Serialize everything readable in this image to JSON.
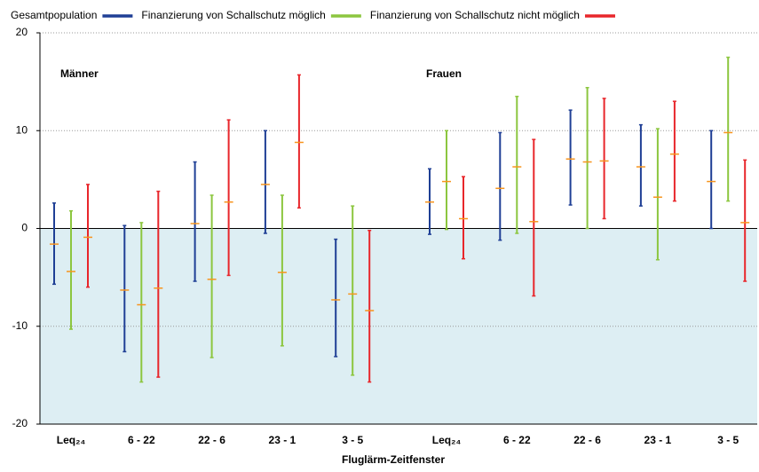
{
  "chart_data": {
    "type": "errorbar",
    "x_label": "Fluglärm-Zeitfenster",
    "annotations": [
      "Männer",
      "Frauen"
    ],
    "categories": [
      "Leq₂₄",
      "6 - 22",
      "22 - 6",
      "23 - 1",
      "3 - 5",
      "Leq₂₄",
      "6 - 22",
      "22 - 6",
      "23 - 1",
      "3 - 5"
    ],
    "estimate_color": "#f7941d",
    "shade_below_zero": "#ddeef3",
    "ylim": [
      -20,
      20
    ],
    "yticks": [
      -20,
      -10,
      0,
      10,
      20
    ],
    "grid": true,
    "series": [
      {
        "name": "Gesamtpopulation",
        "color": "#1f3f95",
        "values": [
          -1.6,
          -6.3,
          0.5,
          4.5,
          -7.3,
          2.7,
          4.1,
          7.1,
          6.3,
          4.8
        ],
        "low": [
          -5.7,
          -12.6,
          -5.4,
          -0.5,
          -13.1,
          -0.6,
          -1.2,
          2.4,
          2.3,
          0
        ],
        "high": [
          2.6,
          0.3,
          6.8,
          10,
          -1.1,
          6.1,
          9.8,
          12.1,
          10.6,
          10
        ]
      },
      {
        "name": "Finanzierung von Schallschutz möglich",
        "color": "#8cc63f",
        "values": [
          -4.4,
          -7.8,
          -5.2,
          -4.5,
          -6.7,
          4.8,
          6.3,
          6.8,
          3.2,
          9.8
        ],
        "low": [
          -10.3,
          -15.7,
          -13.2,
          -12,
          -15,
          -0.1,
          -0.5,
          0,
          -3.2,
          2.8
        ],
        "high": [
          1.8,
          0.6,
          3.4,
          3.4,
          2.3,
          10,
          13.5,
          14.4,
          10.2,
          17.5
        ]
      },
      {
        "name": "Finanzierung von Schallschutz nicht möglich",
        "color": "#e8262b",
        "values": [
          -0.9,
          -6.1,
          2.7,
          8.8,
          -8.4,
          1,
          0.7,
          6.9,
          7.6,
          0.6
        ],
        "low": [
          -6,
          -15.2,
          -4.8,
          2.1,
          -15.7,
          -3.1,
          -6.9,
          1,
          2.8,
          -5.4
        ],
        "high": [
          4.5,
          3.8,
          11.1,
          15.7,
          -0.2,
          5.3,
          9.1,
          13.3,
          13,
          7
        ]
      }
    ]
  }
}
